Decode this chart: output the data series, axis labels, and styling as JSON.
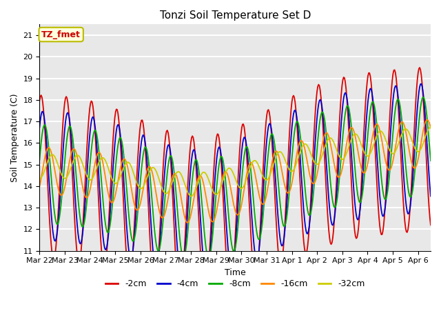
{
  "title": "Tonzi Soil Temperature Set D",
  "xlabel": "Time",
  "ylabel": "Soil Temperature (C)",
  "ylim": [
    11.0,
    21.5
  ],
  "yticks": [
    11.0,
    12.0,
    13.0,
    14.0,
    15.0,
    16.0,
    17.0,
    18.0,
    19.0,
    20.0,
    21.0
  ],
  "annotation_text": "TZ_fmet",
  "annotation_color": "#cc0000",
  "annotation_bg": "#ffffdd",
  "annotation_border": "#bbbb00",
  "series_colors": [
    "#dd0000",
    "#0000cc",
    "#00aa00",
    "#ff8800",
    "#cccc00"
  ],
  "series_labels": [
    "-2cm",
    "-4cm",
    "-8cm",
    "-16cm",
    "-32cm"
  ],
  "bg_color": "#e8e8e8",
  "grid_color": "#ffffff",
  "n_days": 15.5,
  "n_points": 500
}
